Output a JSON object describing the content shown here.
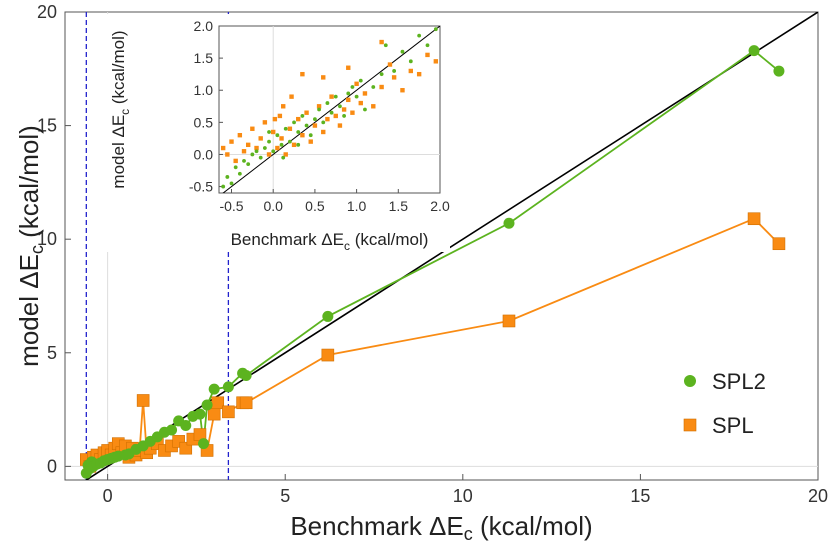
{
  "colors": {
    "spl2": "#5cb31f",
    "spl": "#f98b13",
    "diagonal": "#000000",
    "dashed": "#2222cc"
  },
  "chart_data": [
    {
      "type": "line",
      "xlabel": "Benchmark ΔE_c (kcal/mol)",
      "ylabel": "model ΔE_c (kcal/mol)",
      "xlabel_parts": [
        "Benchmark ΔE",
        "c",
        " (kcal/mol)"
      ],
      "ylabel_parts": [
        "model ΔE",
        "c",
        " (kcal/mol)"
      ],
      "xlim": [
        -1.2,
        20
      ],
      "ylim": [
        -0.6,
        20
      ],
      "xticks": [
        0,
        5,
        10,
        15,
        20
      ],
      "yticks": [
        0,
        5,
        10,
        15,
        20
      ],
      "reference_line": "y = x",
      "vertical_dashed_lines_x": [
        -0.6,
        3.4
      ],
      "legend": {
        "placement": "bottom-right",
        "entries": [
          "SPL2",
          "SPL"
        ]
      },
      "series": [
        {
          "name": "SPL2",
          "marker": "circle",
          "points": [
            [
              -0.6,
              -0.3
            ],
            [
              -0.55,
              0.05
            ],
            [
              -0.5,
              -0.1
            ],
            [
              -0.45,
              0.2
            ],
            [
              -0.4,
              0.0
            ],
            [
              -0.3,
              0.1
            ],
            [
              -0.2,
              0.15
            ],
            [
              -0.1,
              0.25
            ],
            [
              0.0,
              0.3
            ],
            [
              0.1,
              0.35
            ],
            [
              0.2,
              0.4
            ],
            [
              0.3,
              0.45
            ],
            [
              0.5,
              0.5
            ],
            [
              0.6,
              0.55
            ],
            [
              0.8,
              0.75
            ],
            [
              1.0,
              0.9
            ],
            [
              1.2,
              1.1
            ],
            [
              1.4,
              1.3
            ],
            [
              1.6,
              1.5
            ],
            [
              1.8,
              1.6
            ],
            [
              2.0,
              2.0
            ],
            [
              2.2,
              1.8
            ],
            [
              2.4,
              2.2
            ],
            [
              2.6,
              2.3
            ],
            [
              2.7,
              1.0
            ],
            [
              2.8,
              2.7
            ],
            [
              3.0,
              3.4
            ],
            [
              3.4,
              3.5
            ],
            [
              3.8,
              4.1
            ],
            [
              3.9,
              4.0
            ],
            [
              6.2,
              6.6
            ],
            [
              11.3,
              10.7
            ],
            [
              18.2,
              18.3
            ],
            [
              18.9,
              17.4
            ]
          ]
        },
        {
          "name": "SPL",
          "marker": "square",
          "points": [
            [
              -0.6,
              0.3
            ],
            [
              -0.5,
              0.0
            ],
            [
              -0.4,
              0.4
            ],
            [
              -0.3,
              0.5
            ],
            [
              -0.2,
              0.3
            ],
            [
              -0.1,
              0.6
            ],
            [
              0.0,
              0.7
            ],
            [
              0.1,
              0.5
            ],
            [
              0.2,
              0.8
            ],
            [
              0.3,
              1.0
            ],
            [
              0.4,
              0.6
            ],
            [
              0.5,
              0.9
            ],
            [
              0.6,
              0.4
            ],
            [
              0.7,
              0.8
            ],
            [
              0.8,
              0.5
            ],
            [
              0.9,
              0.7
            ],
            [
              1.0,
              2.9
            ],
            [
              1.1,
              0.6
            ],
            [
              1.2,
              0.8
            ],
            [
              1.4,
              1.0
            ],
            [
              1.6,
              0.7
            ],
            [
              1.8,
              0.9
            ],
            [
              2.0,
              1.1
            ],
            [
              2.2,
              0.8
            ],
            [
              2.4,
              1.2
            ],
            [
              2.6,
              1.4
            ],
            [
              2.8,
              0.7
            ],
            [
              3.0,
              2.3
            ],
            [
              3.1,
              2.8
            ],
            [
              3.4,
              2.4
            ],
            [
              3.8,
              2.8
            ],
            [
              3.9,
              2.8
            ],
            [
              6.2,
              4.9
            ],
            [
              11.3,
              6.4
            ],
            [
              18.2,
              10.9
            ],
            [
              18.9,
              9.8
            ]
          ]
        }
      ]
    },
    {
      "type": "scatter",
      "xlabel": "Benchmark ΔE_c (kcal/mol)",
      "ylabel": "model ΔE_c (kcal/mol)",
      "xlabel_parts": [
        "Benchmark ΔE",
        "c",
        " (kcal/mol)"
      ],
      "ylabel_parts": [
        "model ΔE",
        "c",
        " (kcal/mol)"
      ],
      "xlim": [
        -0.65,
        2.0
      ],
      "ylim": [
        -0.6,
        2.0
      ],
      "xticks": [
        "-0.5",
        "0.0",
        "0.5",
        "1.0",
        "1.5",
        "2.0"
      ],
      "yticks": [
        "-0.5",
        "0.0",
        "0.5",
        "1.0",
        "1.5",
        "2.0"
      ],
      "reference_line": "y = x",
      "series": [
        {
          "name": "SPL2",
          "marker": "circle",
          "points": [
            [
              -0.6,
              -0.5
            ],
            [
              -0.55,
              -0.35
            ],
            [
              -0.5,
              -0.45
            ],
            [
              -0.45,
              -0.2
            ],
            [
              -0.4,
              -0.3
            ],
            [
              -0.35,
              -0.1
            ],
            [
              -0.3,
              -0.15
            ],
            [
              -0.25,
              0.0
            ],
            [
              -0.2,
              0.05
            ],
            [
              -0.15,
              -0.05
            ],
            [
              -0.1,
              0.1
            ],
            [
              -0.05,
              0.2
            ],
            [
              0.0,
              0.05
            ],
            [
              0.05,
              0.3
            ],
            [
              0.1,
              0.15
            ],
            [
              0.15,
              0.4
            ],
            [
              0.2,
              0.2
            ],
            [
              0.25,
              0.5
            ],
            [
              0.3,
              0.35
            ],
            [
              0.35,
              0.6
            ],
            [
              0.4,
              0.45
            ],
            [
              0.45,
              0.3
            ],
            [
              0.5,
              0.55
            ],
            [
              0.55,
              0.7
            ],
            [
              0.6,
              0.5
            ],
            [
              0.65,
              0.8
            ],
            [
              0.7,
              0.65
            ],
            [
              0.75,
              0.9
            ],
            [
              0.8,
              0.75
            ],
            [
              0.85,
              0.6
            ],
            [
              0.9,
              0.95
            ],
            [
              0.95,
              1.05
            ],
            [
              1.0,
              0.9
            ],
            [
              1.05,
              1.15
            ],
            [
              1.1,
              0.7
            ],
            [
              1.2,
              1.05
            ],
            [
              1.3,
              1.25
            ],
            [
              1.35,
              1.7
            ],
            [
              1.45,
              1.3
            ],
            [
              1.55,
              1.6
            ],
            [
              1.65,
              1.45
            ],
            [
              1.75,
              1.85
            ],
            [
              1.85,
              1.7
            ],
            [
              1.95,
              1.95
            ],
            [
              0.12,
              -0.05
            ],
            [
              0.3,
              0.15
            ],
            [
              -0.05,
              0.35
            ]
          ]
        },
        {
          "name": "SPL",
          "marker": "square",
          "points": [
            [
              -0.6,
              0.1
            ],
            [
              -0.55,
              0.0
            ],
            [
              -0.5,
              0.2
            ],
            [
              -0.45,
              -0.1
            ],
            [
              -0.4,
              0.3
            ],
            [
              -0.35,
              0.05
            ],
            [
              -0.3,
              0.15
            ],
            [
              -0.25,
              0.4
            ],
            [
              -0.2,
              0.1
            ],
            [
              -0.15,
              0.25
            ],
            [
              -0.1,
              0.5
            ],
            [
              -0.05,
              0.0
            ],
            [
              0.0,
              0.35
            ],
            [
              0.02,
              0.55
            ],
            [
              0.05,
              0.1
            ],
            [
              0.08,
              0.6
            ],
            [
              0.1,
              0.25
            ],
            [
              0.12,
              0.75
            ],
            [
              0.15,
              0.0
            ],
            [
              0.2,
              0.4
            ],
            [
              0.22,
              0.9
            ],
            [
              0.25,
              0.15
            ],
            [
              0.3,
              0.55
            ],
            [
              0.35,
              0.3
            ],
            [
              0.4,
              0.65
            ],
            [
              0.45,
              0.2
            ],
            [
              0.5,
              0.45
            ],
            [
              0.55,
              0.75
            ],
            [
              0.6,
              0.35
            ],
            [
              0.65,
              0.55
            ],
            [
              0.7,
              0.9
            ],
            [
              0.75,
              0.6
            ],
            [
              0.8,
              0.45
            ],
            [
              0.85,
              0.7
            ],
            [
              0.9,
              0.85
            ],
            [
              0.95,
              0.65
            ],
            [
              1.0,
              1.1
            ],
            [
              1.05,
              0.8
            ],
            [
              1.1,
              0.95
            ],
            [
              1.2,
              0.75
            ],
            [
              1.3,
              1.05
            ],
            [
              1.4,
              1.4
            ],
            [
              1.45,
              1.2
            ],
            [
              1.55,
              1.0
            ],
            [
              1.65,
              1.3
            ],
            [
              1.75,
              1.25
            ],
            [
              1.85,
              1.55
            ],
            [
              1.95,
              1.45
            ],
            [
              0.35,
              1.25
            ],
            [
              0.6,
              1.2
            ],
            [
              0.9,
              1.35
            ],
            [
              1.3,
              1.75
            ]
          ]
        }
      ]
    }
  ]
}
